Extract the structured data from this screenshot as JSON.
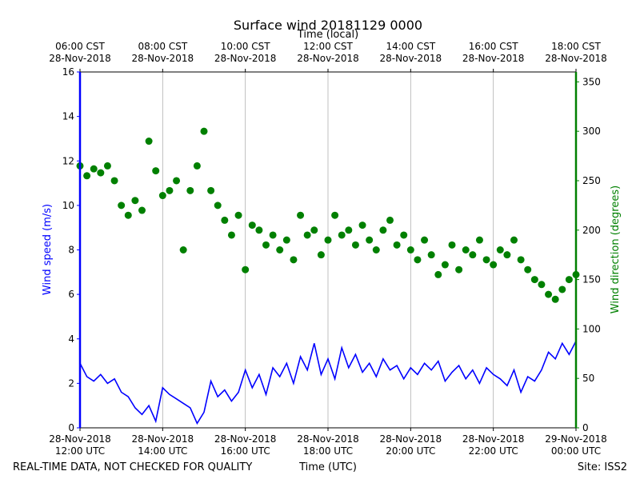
{
  "chart_data": {
    "type": "line",
    "title": "Surface wind 20181129 0000",
    "x2label": "Time (local)",
    "xlabel": "Time (UTC)",
    "ylabel": "Wind speed (m/s)",
    "y2label": "Wind direction (degrees)",
    "footer_left": "REAL-TIME DATA, NOT CHECKED FOR QUALITY",
    "footer_right": "Site: ISS2",
    "xlim": [
      "2018-11-28T12:00",
      "2018-11-29T00:00"
    ],
    "xticks": [
      {
        "value": "2018-11-28T12:00",
        "label": "28-Nov-2018\n12:00 UTC"
      },
      {
        "value": "2018-11-28T14:00",
        "label": "28-Nov-2018\n14:00 UTC"
      },
      {
        "value": "2018-11-28T16:00",
        "label": "28-Nov-2018\n16:00 UTC"
      },
      {
        "value": "2018-11-28T18:00",
        "label": "28-Nov-2018\n18:00 UTC"
      },
      {
        "value": "2018-11-28T20:00",
        "label": "28-Nov-2018\n20:00 UTC"
      },
      {
        "value": "2018-11-28T22:00",
        "label": "28-Nov-2018\n22:00 UTC"
      },
      {
        "value": "2018-11-29T00:00",
        "label": "29-Nov-2018\n00:00 UTC"
      }
    ],
    "x2ticks": [
      {
        "value": "2018-11-28T12:00",
        "label": "06:00 CST\n28-Nov-2018"
      },
      {
        "value": "2018-11-28T14:00",
        "label": "08:00 CST\n28-Nov-2018"
      },
      {
        "value": "2018-11-28T16:00",
        "label": "10:00 CST\n28-Nov-2018"
      },
      {
        "value": "2018-11-28T18:00",
        "label": "12:00 CST\n28-Nov-2018"
      },
      {
        "value": "2018-11-28T20:00",
        "label": "14:00 CST\n28-Nov-2018"
      },
      {
        "value": "2018-11-28T22:00",
        "label": "16:00 CST\n28-Nov-2018"
      },
      {
        "value": "2018-11-29T00:00",
        "label": "18:00 CST\n28-Nov-2018"
      }
    ],
    "ylim": [
      0,
      16
    ],
    "yticks": [
      0,
      2,
      4,
      6,
      8,
      10,
      12,
      14,
      16
    ],
    "y2lim": [
      0,
      360
    ],
    "y2ticks": [
      0,
      50,
      100,
      150,
      200,
      250,
      300,
      350
    ],
    "y_color": "#0000ff",
    "y2_color": "#008000",
    "grid": "x",
    "x": [
      "2018-11-28T12:00",
      "2018-11-28T12:10",
      "2018-11-28T12:20",
      "2018-11-28T12:30",
      "2018-11-28T12:40",
      "2018-11-28T12:50",
      "2018-11-28T13:00",
      "2018-11-28T13:10",
      "2018-11-28T13:20",
      "2018-11-28T13:30",
      "2018-11-28T13:40",
      "2018-11-28T13:50",
      "2018-11-28T14:00",
      "2018-11-28T14:10",
      "2018-11-28T14:20",
      "2018-11-28T14:30",
      "2018-11-28T14:40",
      "2018-11-28T14:50",
      "2018-11-28T15:00",
      "2018-11-28T15:10",
      "2018-11-28T15:20",
      "2018-11-28T15:30",
      "2018-11-28T15:40",
      "2018-11-28T15:50",
      "2018-11-28T16:00",
      "2018-11-28T16:10",
      "2018-11-28T16:20",
      "2018-11-28T16:30",
      "2018-11-28T16:40",
      "2018-11-28T16:50",
      "2018-11-28T17:00",
      "2018-11-28T17:10",
      "2018-11-28T17:20",
      "2018-11-28T17:30",
      "2018-11-28T17:40",
      "2018-11-28T17:50",
      "2018-11-28T18:00",
      "2018-11-28T18:10",
      "2018-11-28T18:20",
      "2018-11-28T18:30",
      "2018-11-28T18:40",
      "2018-11-28T18:50",
      "2018-11-28T19:00",
      "2018-11-28T19:10",
      "2018-11-28T19:20",
      "2018-11-28T19:30",
      "2018-11-28T19:40",
      "2018-11-28T19:50",
      "2018-11-28T20:00",
      "2018-11-28T20:10",
      "2018-11-28T20:20",
      "2018-11-28T20:30",
      "2018-11-28T20:40",
      "2018-11-28T20:50",
      "2018-11-28T21:00",
      "2018-11-28T21:10",
      "2018-11-28T21:20",
      "2018-11-28T21:30",
      "2018-11-28T21:40",
      "2018-11-28T21:50",
      "2018-11-28T22:00",
      "2018-11-28T22:10",
      "2018-11-28T22:20",
      "2018-11-28T22:30",
      "2018-11-28T22:40",
      "2018-11-28T22:50",
      "2018-11-28T23:00",
      "2018-11-28T23:10",
      "2018-11-28T23:20",
      "2018-11-28T23:30",
      "2018-11-28T23:40",
      "2018-11-28T23:50",
      "2018-11-29T00:00"
    ],
    "series": [
      {
        "type": "line",
        "axis": "y",
        "color": "#0000ff",
        "values": [
          2.9,
          2.3,
          2.1,
          2.4,
          2.0,
          2.2,
          1.6,
          1.4,
          0.9,
          0.6,
          1.0,
          0.3,
          1.8,
          1.5,
          1.3,
          1.1,
          0.9,
          0.2,
          0.7,
          2.1,
          1.4,
          1.7,
          1.2,
          1.6,
          2.6,
          1.8,
          2.4,
          1.5,
          2.7,
          2.3,
          2.9,
          2.0,
          3.2,
          2.6,
          3.8,
          2.4,
          3.1,
          2.2,
          3.6,
          2.7,
          3.3,
          2.5,
          2.9,
          2.3,
          3.1,
          2.6,
          2.8,
          2.2,
          2.7,
          2.4,
          2.9,
          2.6,
          3.0,
          2.1,
          2.5,
          2.8,
          2.2,
          2.6,
          2.0,
          2.7,
          2.4,
          2.2,
          1.9,
          2.6,
          1.6,
          2.3,
          2.1,
          2.6,
          3.4,
          3.1,
          3.8,
          3.3,
          3.9
        ]
      },
      {
        "type": "scatter",
        "axis": "y2",
        "color": "#008000",
        "values": [
          265,
          255,
          262,
          258,
          265,
          250,
          225,
          215,
          230,
          220,
          290,
          260,
          235,
          240,
          250,
          180,
          240,
          265,
          300,
          240,
          225,
          210,
          195,
          215,
          160,
          205,
          200,
          185,
          195,
          180,
          190,
          170,
          215,
          195,
          200,
          175,
          190,
          215,
          195,
          200,
          185,
          205,
          190,
          180,
          200,
          210,
          185,
          195,
          180,
          170,
          190,
          175,
          155,
          165,
          185,
          160,
          180,
          175,
          190,
          170,
          165,
          180,
          175,
          190,
          170,
          160,
          150,
          145,
          135,
          130,
          140,
          150,
          155
        ]
      }
    ]
  }
}
